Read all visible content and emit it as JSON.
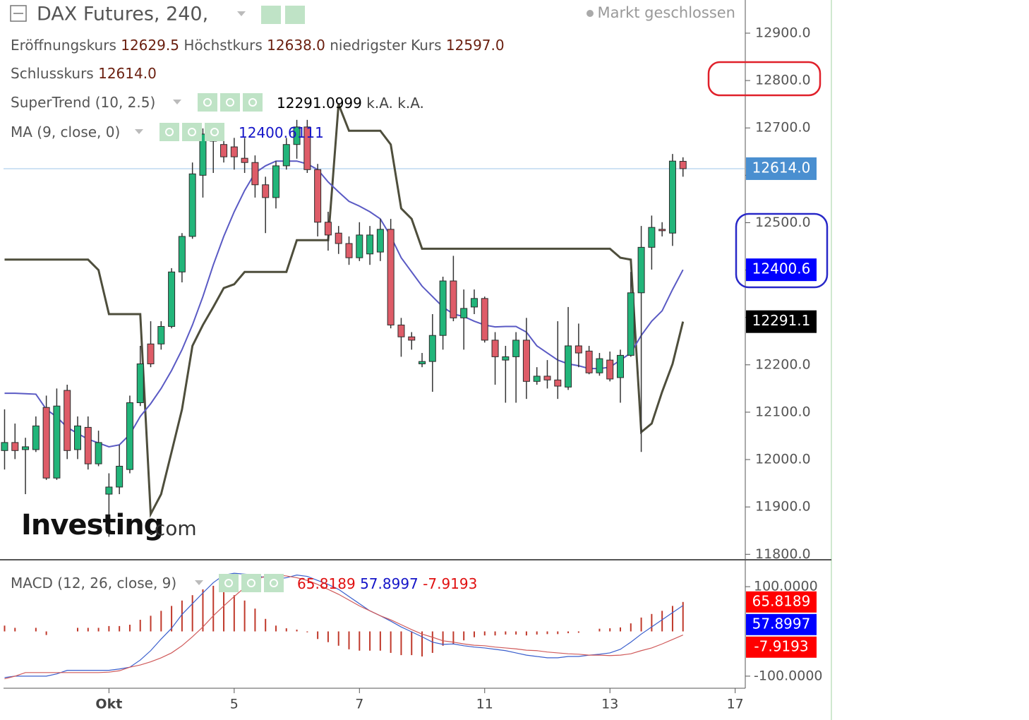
{
  "chart_data": [
    {
      "type": "candlestick",
      "title": "DAX Futures, 240,",
      "status": "Markt geschlossen",
      "legend_names": {
        "open": "Eröffnungskurs",
        "high": "Höchstkurs",
        "low": "niedrigster Kurs",
        "close": "Schlusskurs"
      },
      "value_labels": {
        "open": "12629.5",
        "high": "12638.0",
        "low": "12597.0",
        "close": "12614.0"
      },
      "close_label_color": "#4a8fd0",
      "up_color": "#22b57a",
      "down_color": "#de5c68",
      "open": [
        12019,
        12036,
        12021,
        12021,
        12110,
        11961,
        12146,
        12021,
        12068,
        11991,
        11927,
        11942,
        11979,
        12120,
        12244,
        12244,
        12281,
        12396,
        12471,
        12600,
        12687,
        12665,
        12660,
        12636,
        12627,
        12580,
        12553,
        12620,
        12665,
        12702,
        12612,
        12501,
        12478,
        12456,
        12426,
        12434,
        12438,
        12486,
        12284,
        12259,
        12202,
        12207,
        12262,
        12377,
        12299,
        12322,
        12340,
        12252,
        12210,
        12217,
        12252,
        12165,
        12176,
        12168,
        12153,
        12240,
        12229,
        12183,
        12210,
        12173,
        12220,
        12352,
        12448,
        12486,
        12478,
        12629.5
      ],
      "high": [
        12106,
        12076,
        12046,
        12091,
        12135,
        12150,
        12158,
        12091,
        12091,
        12061,
        11971,
        12031,
        12135,
        12240,
        12292,
        12292,
        12404,
        12478,
        12627,
        12699,
        12694,
        12694,
        12679,
        12679,
        12642,
        12597,
        12630,
        12679,
        12717,
        12717,
        12624,
        12523,
        12493,
        12471,
        12501,
        12493,
        12508,
        12508,
        12299,
        12269,
        12225,
        12307,
        12386,
        12430,
        12359,
        12359,
        12344,
        12269,
        12240,
        12269,
        12299,
        12195,
        12210,
        12292,
        12322,
        12287,
        12240,
        12225,
        12228,
        12232,
        12396,
        12493,
        12515,
        12501,
        12645,
        12638
      ],
      "low": [
        11979,
        12001,
        11927,
        12016,
        11957,
        11957,
        12001,
        12001,
        11979,
        11986,
        11837,
        11927,
        11971,
        12113,
        12195,
        12232,
        12277,
        12374,
        12466,
        12553,
        12605,
        12627,
        12612,
        12605,
        12553,
        12478,
        12530,
        12612,
        12635,
        12605,
        12471,
        12441,
        12434,
        12411,
        12419,
        12411,
        12419,
        12277,
        12217,
        12232,
        12195,
        12143,
        12232,
        12292,
        12232,
        12307,
        12247,
        12158,
        12120,
        12120,
        12128,
        12158,
        12150,
        12128,
        12147,
        12195,
        12180,
        12177,
        12165,
        12120,
        12217,
        12016,
        12401,
        12471,
        12451,
        12597
      ],
      "close": [
        12036,
        12019,
        12027,
        12071,
        11961,
        12113,
        12019,
        12071,
        11991,
        12036,
        11942,
        11986,
        12120,
        12202,
        12202,
        12281,
        12396,
        12471,
        12603,
        12687,
        12672,
        12639,
        12639,
        12627,
        12580,
        12553,
        12620,
        12665,
        12702,
        12612,
        12501,
        12474,
        12456,
        12426,
        12474,
        12474,
        12486,
        12284,
        12259,
        12252,
        12207,
        12262,
        12377,
        12299,
        12319,
        12340,
        12252,
        12217,
        12217,
        12252,
        12165,
        12176,
        12168,
        12155,
        12240,
        12225,
        12183,
        12213,
        12170,
        12220,
        12352,
        12448,
        12490,
        12483,
        12630,
        12614
      ],
      "series": [
        {
          "name": "SuperTrend (10, 2.5)",
          "color": "#4e4e3c",
          "values": [
            12422,
            12422,
            12422,
            12422,
            12422,
            12422,
            12422,
            12422,
            12422,
            12400,
            12307,
            12307,
            12307,
            12307,
            11885,
            11927,
            12016,
            12106,
            12240,
            12284,
            12322,
            12362,
            12370,
            12396,
            12396,
            12396,
            12396,
            12396,
            12463,
            12463,
            12463,
            12463,
            12750,
            12694,
            12694,
            12694,
            12694,
            12665,
            12530,
            12508,
            12445,
            12445,
            12445,
            12445,
            12445,
            12445,
            12445,
            12445,
            12445,
            12445,
            12445,
            12445,
            12445,
            12445,
            12445,
            12445,
            12445,
            12445,
            12445,
            12426,
            12422,
            12058,
            12076,
            12143,
            12202,
            12291.0999
          ],
          "na_labels": [
            "k.A.",
            "k.A."
          ],
          "last_label": "12291.1",
          "label_color": "#000000"
        },
        {
          "name": "MA (9, close, 0)",
          "color": "#5a5ac4",
          "values": [
            12140,
            12140,
            12139,
            12138,
            12106,
            12090,
            12068,
            12055,
            12043,
            12035,
            12027,
            12031,
            12053,
            12091,
            12118,
            12150,
            12188,
            12232,
            12284,
            12344,
            12411,
            12471,
            12523,
            12568,
            12605,
            12620,
            12630,
            12630,
            12630,
            12624,
            12612,
            12586,
            12565,
            12545,
            12535,
            12523,
            12508,
            12471,
            12426,
            12396,
            12366,
            12344,
            12322,
            12307,
            12302,
            12292,
            12284,
            12280,
            12281,
            12281,
            12269,
            12240,
            12225,
            12210,
            12202,
            12198,
            12192,
            12192,
            12195,
            12210,
            12225,
            12262,
            12292,
            12314,
            12359,
            12400.6111
          ],
          "last_label": "12400.6",
          "label_color": "#0000ff"
        }
      ],
      "ylim": [
        11790,
        12970
      ],
      "yticks": [
        {
          "value": 11800,
          "label": "11800.0"
        },
        {
          "value": 11900,
          "label": "11900.0"
        },
        {
          "value": 12000,
          "label": "12000.0"
        },
        {
          "value": 12100,
          "label": "12100.0"
        },
        {
          "value": 12200,
          "label": "12200.0"
        },
        {
          "value": 12300,
          "label": "12300.0"
        },
        {
          "value": 12400,
          "label": "12400.0"
        },
        {
          "value": 12500,
          "label": "12500.0"
        },
        {
          "value": 12600,
          "label": "12600.0"
        },
        {
          "value": 12700,
          "label": "12700.0"
        },
        {
          "value": 12800,
          "label": "12800.0"
        },
        {
          "value": 12900,
          "label": "12900.0"
        }
      ],
      "watermark": [
        "Investing",
        ".com"
      ]
    },
    {
      "type": "macd",
      "name": "MACD (12, 26, close, 9)",
      "series": [
        {
          "color": "#c0392b",
          "style": "histogram",
          "values": [
            13,
            8,
            0,
            8,
            -8,
            0,
            0,
            8,
            8,
            8,
            12,
            12,
            15,
            26,
            35,
            46,
            57,
            69,
            81,
            94,
            102,
            94,
            81,
            69,
            51,
            28,
            13,
            7,
            4,
            -2,
            -17,
            -24,
            -32,
            -40,
            -43,
            -43,
            -43,
            -48,
            -53,
            -53,
            -56,
            -48,
            -32,
            -28,
            -20,
            -13,
            -9,
            -9,
            -7,
            -7,
            -9,
            -7,
            -6,
            -6,
            -4,
            -3,
            0,
            6,
            7,
            9,
            18,
            31,
            39,
            46,
            57,
            65.8189
          ],
          "label_color": "#ff0000"
        },
        {
          "color": "#3a5fcd",
          "style": "line",
          "values": [
            -103,
            -100,
            -100,
            -100,
            -100,
            -95,
            -87,
            -87,
            -87,
            -87,
            -87,
            -84,
            -80,
            -64,
            -43,
            -17,
            7,
            38,
            62,
            86,
            109,
            126,
            130,
            128,
            126,
            120,
            117,
            120,
            126,
            123,
            114,
            105,
            94,
            78,
            62,
            46,
            35,
            23,
            10,
            -1,
            -12,
            -24,
            -29,
            -28,
            -32,
            -35,
            -37,
            -40,
            -43,
            -48,
            -53,
            -56,
            -59,
            -59,
            -56,
            -56,
            -53,
            -51,
            -48,
            -40,
            -24,
            -6,
            10,
            26,
            42,
            57.8997
          ],
          "label_color": "#0000ff"
        },
        {
          "color": "#d05a5a",
          "style": "line",
          "values": [
            -106,
            -100,
            -92,
            -92,
            -92,
            -92,
            -92,
            -92,
            -92,
            -92,
            -91,
            -88,
            -80,
            -75,
            -68,
            -59,
            -48,
            -32,
            -12,
            10,
            35,
            57,
            78,
            98,
            114,
            124,
            126,
            124,
            120,
            114,
            105,
            94,
            83,
            70,
            57,
            46,
            35,
            26,
            15,
            4,
            -6,
            -13,
            -21,
            -24,
            -28,
            -31,
            -32,
            -35,
            -37,
            -39,
            -42,
            -43,
            -46,
            -48,
            -50,
            -51,
            -53,
            -53,
            -54,
            -53,
            -50,
            -43,
            -37,
            -28,
            -18,
            -7.9193
          ],
          "label_color": "#ff0000"
        }
      ],
      "ylim": [
        -127,
        157
      ],
      "yticks": [
        {
          "value": 100,
          "label": "100.0000"
        },
        {
          "value": -100,
          "label": "-100.0000"
        }
      ],
      "xlim": [
        -0.1,
        70.9
      ],
      "xticks": [
        {
          "value": 10,
          "label": "Okt"
        },
        {
          "value": 22,
          "label": "5"
        },
        {
          "value": 34,
          "label": "7"
        },
        {
          "value": 46,
          "label": "11"
        },
        {
          "value": 58,
          "label": "13"
        },
        {
          "value": 70,
          "label": "17"
        }
      ]
    }
  ]
}
